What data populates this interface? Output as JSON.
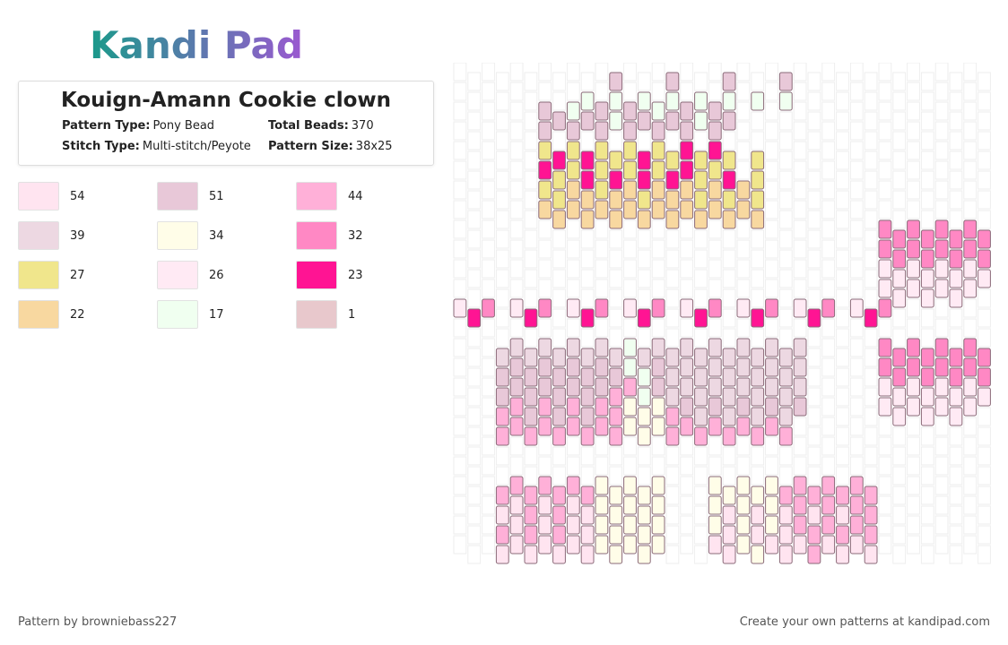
{
  "header": {
    "logo": "Kandi Pad"
  },
  "card": {
    "title": "Kouign-Amann Cookie clown",
    "fields": [
      {
        "label": "Pattern Type:",
        "value": "Pony Bead"
      },
      {
        "label": "Total Beads:",
        "value": "370"
      },
      {
        "label": "Stitch Type:",
        "value": "Multi-stitch/Peyote"
      },
      {
        "label": "Pattern Size:",
        "value": "38x25"
      }
    ]
  },
  "legend": [
    {
      "color": "#FFE4F0",
      "count": "54"
    },
    {
      "color": "#E8C8D8",
      "count": "51"
    },
    {
      "color": "#FFB0D8",
      "count": "44"
    },
    {
      "color": "#EDD8E2",
      "count": "39"
    },
    {
      "color": "#FFFDE8",
      "count": "34"
    },
    {
      "color": "#FF88C4",
      "count": "32"
    },
    {
      "color": "#F0E68C",
      "count": "27"
    },
    {
      "color": "#FFEAF4",
      "count": "26"
    },
    {
      "color": "#FF1493",
      "count": "23"
    },
    {
      "color": "#F8D8A0",
      "count": "22"
    },
    {
      "color": "#F0FFF0",
      "count": "17"
    },
    {
      "color": "#E8C8CC",
      "count": "1"
    }
  ],
  "footer": {
    "left": "Pattern by browniebass227",
    "right": "Create your own patterns at kandipad.com"
  }
}
